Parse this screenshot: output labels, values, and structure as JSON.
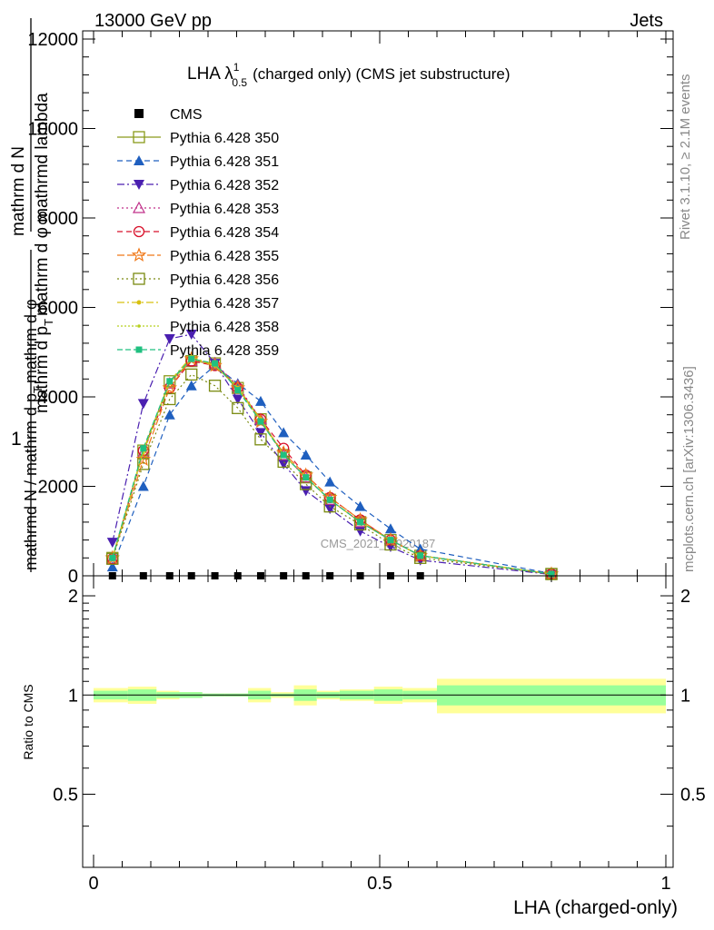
{
  "header": {
    "left": "13000 GeV pp",
    "right": "Jets",
    "side_rivet": "Rivet 3.1.10, ≥ 2.1M events",
    "side_mcplots": "mcplots.cern.ch [arXiv:1306.3436]",
    "watermark": "CMS_2021_I1920187"
  },
  "colors": {
    "cms": "#000000",
    "s350": "#8a9a1b",
    "s351": "#1f5fbf",
    "s352": "#4a1fb0",
    "s353": "#c0308a",
    "s354": "#d8102a",
    "s355": "#f07818",
    "s356": "#7a8a10",
    "s357": "#d8c010",
    "s358": "#b8d020",
    "s359": "#20c080",
    "band_inner": "#99ff99",
    "band_outer": "#ffff99"
  },
  "chart_data": [
    {
      "type": "line",
      "title": "LHA λ",
      "title_sup": "1",
      "title_sub": "0.5",
      "title_rest": "(charged only) (CMS jet substructure)",
      "ylabel": "1 / mathrmd N / mathrm d p_T mathrm d φ mathrm d^2N / mathrm d p_T mathrm d φ mathrm d lambda",
      "ylabel_top_num": "mathrm d",
      "ylabel_top_n": "N",
      "ylabel_top_den": "mathrm d p",
      "ylabel_sub_t": "T",
      "ylabel_top_den2": "mathrm d φ  mathrmd lambda",
      "ylabel_one": "1",
      "ylabel_bottom": "mathrmd N / mathrm d p",
      "ylabel_bottom_sub": "T",
      "ylabel_bottom2": "mathrm d φ",
      "ylim": [
        0,
        12000
      ],
      "y_ticks": [
        0,
        2000,
        4000,
        6000,
        8000,
        10000,
        12000
      ],
      "y_tick_labels": [
        "0",
        "2000",
        "4000",
        "6000",
        "8000",
        "10000",
        "12000"
      ],
      "xlim": [
        -0.02,
        1.02
      ],
      "x": [
        0.033,
        0.087,
        0.133,
        0.171,
        0.212,
        0.252,
        0.292,
        0.332,
        0.371,
        0.413,
        0.466,
        0.519,
        0.571,
        0.8
      ],
      "cms_values": [
        0,
        0,
        0,
        0,
        0,
        0,
        0,
        0,
        0,
        0,
        0,
        0,
        0,
        null
      ],
      "series": [
        {
          "name": "Pythia 6.428 350",
          "key": "s350",
          "marker": "square-open",
          "dash": "",
          "values": [
            400,
            2800,
            4350,
            4800,
            4750,
            4200,
            3500,
            2700,
            2200,
            1700,
            1200,
            800,
            450,
            40
          ]
        },
        {
          "name": "Pythia 6.428 351",
          "key": "s351",
          "marker": "triangle-up",
          "dash": "6,4",
          "values": [
            200,
            2000,
            3600,
            4250,
            4700,
            4300,
            3900,
            3200,
            2700,
            2100,
            1550,
            1050,
            600,
            50
          ]
        },
        {
          "name": "Pythia 6.428 352",
          "key": "s352",
          "marker": "triangle-down",
          "dash": "8,3,2,3",
          "values": [
            750,
            3850,
            5300,
            5400,
            4750,
            3950,
            3200,
            2500,
            1900,
            1500,
            1000,
            650,
            350,
            30
          ]
        },
        {
          "name": "Pythia 6.428 353",
          "key": "s353",
          "marker": "triangle-open",
          "dash": "2,3",
          "values": [
            380,
            2750,
            4300,
            4800,
            4750,
            4250,
            3500,
            2700,
            2200,
            1700,
            1200,
            800,
            450,
            40
          ]
        },
        {
          "name": "Pythia 6.428 354",
          "key": "s354",
          "marker": "circle-open",
          "dash": "6,4",
          "values": [
            380,
            2800,
            4200,
            4800,
            4700,
            4200,
            3500,
            2850,
            2250,
            1750,
            1250,
            800,
            450,
            40
          ]
        },
        {
          "name": "Pythia 6.428 355",
          "key": "s355",
          "marker": "star-open",
          "dash": "8,3",
          "values": [
            400,
            2600,
            4200,
            4850,
            4700,
            4200,
            3450,
            2750,
            2250,
            1750,
            1250,
            800,
            450,
            40
          ]
        },
        {
          "name": "Pythia 6.428 356",
          "key": "s356",
          "marker": "square-open",
          "dash": "2,3",
          "values": [
            380,
            2500,
            3950,
            4500,
            4250,
            3750,
            3050,
            2550,
            2050,
            1550,
            1150,
            700,
            400,
            40
          ]
        },
        {
          "name": "Pythia 6.428 357",
          "key": "s357",
          "marker": "dot",
          "dash": "8,3,2,3",
          "values": [
            400,
            2800,
            4350,
            4900,
            4700,
            4200,
            3500,
            2700,
            2200,
            1700,
            1200,
            800,
            450,
            40
          ]
        },
        {
          "name": "Pythia 6.428 358",
          "key": "s358",
          "marker": "dot-small",
          "dash": "2,2",
          "values": [
            400,
            2750,
            4300,
            4850,
            4700,
            4200,
            3450,
            2700,
            2200,
            1700,
            1200,
            800,
            450,
            40
          ]
        },
        {
          "name": "Pythia 6.428 359",
          "key": "s359",
          "marker": "square-filled",
          "dash": "6,3",
          "values": [
            400,
            2850,
            4350,
            4850,
            4750,
            4150,
            3450,
            2700,
            2200,
            1700,
            1200,
            800,
            450,
            40
          ]
        }
      ],
      "legend": {
        "cms_label": "CMS",
        "position": "top-left"
      }
    },
    {
      "type": "area",
      "ylabel": "Ratio to CMS",
      "xlabel": "LHA (charged-only)",
      "ylim": [
        0.3,
        2.3
      ],
      "y_ticks": [
        0.5,
        1,
        2
      ],
      "y_tick_labels": [
        "0.5",
        "1",
        "2"
      ],
      "x_ticks": [
        0,
        0.5,
        1
      ],
      "x_tick_labels": [
        "0",
        "0.5",
        "1"
      ],
      "bins": [
        0.0,
        0.06,
        0.11,
        0.15,
        0.19,
        0.23,
        0.27,
        0.31,
        0.35,
        0.39,
        0.43,
        0.49,
        0.54,
        0.6,
        1.0
      ],
      "inner_low": [
        0.97,
        0.96,
        0.98,
        0.98,
        0.99,
        0.99,
        0.97,
        0.99,
        0.96,
        0.98,
        0.97,
        0.96,
        0.97,
        0.93
      ],
      "inner_high": [
        1.03,
        1.04,
        1.02,
        1.02,
        1.01,
        1.01,
        1.03,
        1.01,
        1.04,
        1.02,
        1.03,
        1.04,
        1.03,
        1.07
      ],
      "outer_low": [
        0.95,
        0.94,
        0.97,
        0.98,
        0.99,
        0.99,
        0.95,
        0.98,
        0.93,
        0.97,
        0.96,
        0.94,
        0.95,
        0.88
      ],
      "outer_high": [
        1.05,
        1.06,
        1.03,
        1.02,
        1.01,
        1.01,
        1.05,
        1.02,
        1.07,
        1.03,
        1.04,
        1.06,
        1.05,
        1.12
      ]
    }
  ]
}
